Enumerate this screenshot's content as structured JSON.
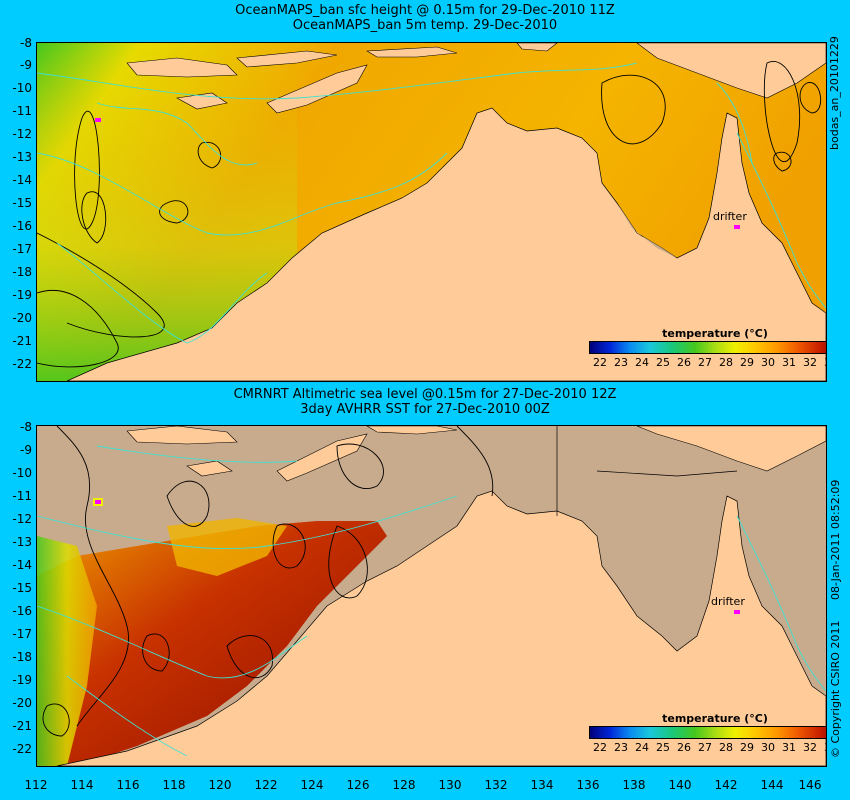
{
  "top_panel": {
    "title_line1": "OceanMAPS_ban sfc height @ 0.15m for 29-Dec-2010 11Z",
    "title_line2": "OceanMAPS_ban 5m temp. 29-Dec-2010",
    "side_label": "bodas_an_20101229",
    "legend_title": "temperature (°C)",
    "drifter_label": "drifter"
  },
  "bottom_panel": {
    "title_line1": "CMRNRT Altimetric sea level  @0.15m  for 27-Dec-2010 12Z",
    "title_line2": "3day AVHRR SST for 27-Dec-2010 00Z",
    "side_label_1": "08-Jan-2011 08:52:09",
    "side_label_2": "© Copyright CSIRO 2011",
    "legend_title": "temperature (°C)",
    "drifter_label": "drifter"
  },
  "map": {
    "lat_labels": [
      "-8",
      "-9",
      "-10",
      "-11",
      "-12",
      "-13",
      "-14",
      "-15",
      "-16",
      "-17",
      "-18",
      "-19",
      "-20",
      "-21",
      "-22"
    ],
    "lon_labels": [
      "112",
      "114",
      "116",
      "118",
      "120",
      "122",
      "124",
      "126",
      "128",
      "130",
      "132",
      "134",
      "136",
      "138",
      "140",
      "142",
      "144",
      "146"
    ],
    "lon_range": [
      112,
      146
    ],
    "lat_range": [
      -8,
      -22.5
    ],
    "colorbar_ticks": [
      "22",
      "23",
      "24",
      "25",
      "26",
      "27",
      "28",
      "29",
      "30",
      "31",
      "32",
      "33"
    ],
    "colors": {
      "background": "#00ccff",
      "land": "#ffcc99",
      "no_data": "#c8aa8c",
      "contour_ssh": "#000000",
      "contour_shelf": "#40e0d0",
      "drifter": "#ff00ff"
    }
  }
}
